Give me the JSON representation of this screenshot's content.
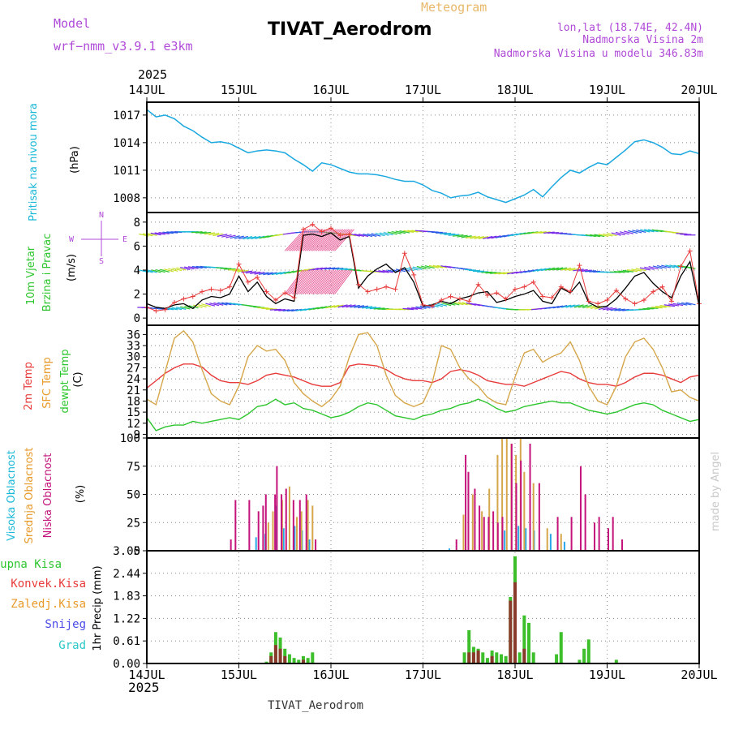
{
  "header": {
    "model_label": "Model",
    "model_name": "wrf−nmm_v3.9.1 e3km",
    "meteogram_label": "Meteogram",
    "title": "TIVAT_Aerodrom",
    "lonlat": "lon,lat (18.74E, 42.4N)",
    "altitude": "Nadmorska Visina 2m",
    "model_altitude": "Nadmorska Visina u modelu 346.83m",
    "year_top": "2025",
    "year_bottom": "2025",
    "footer": "TIVAT_Aerodrom",
    "watermark": "made by Angel"
  },
  "colors": {
    "pressure": "#1aa8e0",
    "temp2m": "#e83b3b",
    "sfc": "#d6a64a",
    "dewpt": "#2ec62e",
    "wind_speed": "#000000",
    "wind_gust": "#e83b3b",
    "high_cloud": "#2aa8e8",
    "mid_cloud": "#d6a64a",
    "low_cloud": "#c4137a",
    "total_precip": "#3cbf2a",
    "conv_precip": "#8a3a2a",
    "label_purple": "#b04ad8",
    "label_cyan": "#1ab8d8",
    "label_orange": "#e89a2a",
    "label_green": "#2ec62e",
    "label_red": "#e83b3b",
    "label_blue": "#4a4ae8",
    "label_teal": "#2ac8c8"
  },
  "chart_data": [
    {
      "type": "line",
      "panel": "pressure",
      "title": "Pritisak na nivou mora",
      "ylabel": "(hPa)",
      "ylim": [
        1006.4,
        1018.4
      ],
      "yticks": [
        1008,
        1011,
        1014,
        1017
      ],
      "x_days": [
        0,
        0.1,
        0.2,
        0.3,
        0.4,
        0.5,
        0.6,
        0.7,
        0.8,
        0.9,
        1.0,
        1.1,
        1.2,
        1.3,
        1.4,
        1.5,
        1.6,
        1.7,
        1.8,
        1.9,
        2.0,
        2.1,
        2.2,
        2.3,
        2.4,
        2.5,
        2.6,
        2.7,
        2.8,
        2.9,
        3.0,
        3.1,
        3.2,
        3.3,
        3.4,
        3.5,
        3.6,
        3.7,
        3.8,
        3.9,
        4.0,
        4.1,
        4.2,
        4.3,
        4.4,
        4.5,
        4.6,
        4.7,
        4.8,
        4.9,
        5.0,
        5.1,
        5.2,
        5.3,
        5.4,
        5.5,
        5.6,
        5.7,
        5.8,
        5.9,
        6.0
      ],
      "values": [
        1017.6,
        1016.8,
        1017.0,
        1016.6,
        1015.8,
        1015.3,
        1014.6,
        1014.0,
        1014.1,
        1013.9,
        1013.4,
        1012.9,
        1013.1,
        1013.2,
        1013.1,
        1012.9,
        1012.2,
        1011.6,
        1010.9,
        1011.8,
        1011.6,
        1011.2,
        1010.8,
        1010.6,
        1010.6,
        1010.5,
        1010.3,
        1010.0,
        1009.8,
        1009.8,
        1009.4,
        1008.8,
        1008.5,
        1008.0,
        1008.2,
        1008.3,
        1008.6,
        1008.1,
        1007.8,
        1007.5,
        1007.9,
        1008.3,
        1008.9,
        1008.1,
        1009.2,
        1010.2,
        1011.0,
        1010.7,
        1011.3,
        1011.8,
        1011.6,
        1012.4,
        1013.2,
        1014.1,
        1014.3,
        1014.0,
        1013.5,
        1012.8,
        1012.7,
        1013.1,
        1012.8
      ]
    },
    {
      "type": "line",
      "panel": "wind",
      "title": "10m Vjetar Brzina i Pravac",
      "ylabel": "(m/s)",
      "ylim": [
        -0.6,
        8.8
      ],
      "yticks": [
        0,
        2,
        4,
        6,
        8
      ],
      "compass": {
        "north": "N",
        "west": "W",
        "east": "E",
        "south": "S"
      },
      "x_days": [
        0,
        0.1,
        0.2,
        0.3,
        0.4,
        0.5,
        0.6,
        0.7,
        0.8,
        0.9,
        1.0,
        1.1,
        1.2,
        1.3,
        1.4,
        1.5,
        1.6,
        1.7,
        1.8,
        1.9,
        2.0,
        2.1,
        2.2,
        2.3,
        2.4,
        2.5,
        2.6,
        2.7,
        2.8,
        2.9,
        3.0,
        3.1,
        3.2,
        3.3,
        3.4,
        3.5,
        3.6,
        3.7,
        3.8,
        3.9,
        4.0,
        4.1,
        4.2,
        4.3,
        4.4,
        4.5,
        4.6,
        4.7,
        4.8,
        4.9,
        5.0,
        5.1,
        5.2,
        5.3,
        5.4,
        5.5,
        5.6,
        5.7,
        5.8,
        5.9,
        6.0
      ],
      "series": [
        {
          "name": "Brzina",
          "values": [
            1.2,
            0.9,
            0.8,
            1.1,
            1.2,
            0.8,
            1.5,
            1.8,
            1.7,
            2.0,
            3.5,
            2.2,
            3.0,
            1.8,
            1.2,
            1.6,
            1.4,
            6.9,
            7.0,
            6.8,
            7.1,
            6.5,
            6.8,
            2.5,
            3.5,
            4.1,
            4.5,
            3.8,
            4.2,
            3.0,
            1.0,
            1.1,
            1.4,
            1.2,
            1.6,
            1.8,
            2.1,
            2.2,
            1.3,
            1.5,
            1.8,
            2.0,
            2.3,
            1.4,
            1.2,
            2.5,
            2.1,
            3.0,
            1.3,
            0.9,
            1.0,
            1.6,
            2.5,
            3.5,
            3.8,
            2.9,
            2.2,
            1.7,
            3.5,
            4.7,
            1.0
          ]
        },
        {
          "name": "Udar",
          "values": [
            0.9,
            0.6,
            0.7,
            1.3,
            1.6,
            1.8,
            2.2,
            2.4,
            2.3,
            2.6,
            4.5,
            3.0,
            3.4,
            2.2,
            1.5,
            2.1,
            1.7,
            7.4,
            7.8,
            7.2,
            7.5,
            6.9,
            7.0,
            2.8,
            2.2,
            2.4,
            2.6,
            2.4,
            5.4,
            3.6,
            1.1,
            1.0,
            1.5,
            1.8,
            1.6,
            1.4,
            2.8,
            1.9,
            2.1,
            1.6,
            2.4,
            2.6,
            3.0,
            1.8,
            1.7,
            2.6,
            2.2,
            4.4,
            1.4,
            1.2,
            1.5,
            2.3,
            1.6,
            1.2,
            1.5,
            2.2,
            2.6,
            1.4,
            4.3,
            5.6,
            1.2
          ]
        }
      ]
    },
    {
      "type": "line",
      "panel": "temperature",
      "title": "2m Temp / SFC Temp / dewpt Temp",
      "ylabel": "(C)",
      "ylim": [
        8,
        38.5
      ],
      "yticks": [
        9,
        12,
        15,
        18,
        21,
        24,
        27,
        30,
        33,
        36
      ],
      "x_days": [
        0,
        0.1,
        0.2,
        0.3,
        0.4,
        0.5,
        0.6,
        0.7,
        0.8,
        0.9,
        1.0,
        1.1,
        1.2,
        1.3,
        1.4,
        1.5,
        1.6,
        1.7,
        1.8,
        1.9,
        2.0,
        2.1,
        2.2,
        2.3,
        2.4,
        2.5,
        2.6,
        2.7,
        2.8,
        2.9,
        3.0,
        3.1,
        3.2,
        3.3,
        3.4,
        3.5,
        3.6,
        3.7,
        3.8,
        3.9,
        4.0,
        4.1,
        4.2,
        4.3,
        4.4,
        4.5,
        4.6,
        4.7,
        4.8,
        4.9,
        5.0,
        5.1,
        5.2,
        5.3,
        5.4,
        5.5,
        5.6,
        5.7,
        5.8,
        5.9,
        6.0
      ],
      "series": [
        {
          "name": "2m Temp",
          "values": [
            21.5,
            23.5,
            25.5,
            27.0,
            28.0,
            28.0,
            27.2,
            25.0,
            23.5,
            23.0,
            23.0,
            22.5,
            23.5,
            25.0,
            25.5,
            25.0,
            24.5,
            23.5,
            22.5,
            22.0,
            22.0,
            23.0,
            27.5,
            28.0,
            27.8,
            27.5,
            26.5,
            25.0,
            24.0,
            23.5,
            23.5,
            23.0,
            24.0,
            26.0,
            26.5,
            26.0,
            25.0,
            23.5,
            23.0,
            22.5,
            22.5,
            22.0,
            23.0,
            24.0,
            25.0,
            26.0,
            25.5,
            24.0,
            23.0,
            22.5,
            22.5,
            22.0,
            23.0,
            24.5,
            25.5,
            25.5,
            25.0,
            24.0,
            23.0,
            24.5,
            25.0
          ]
        },
        {
          "name": "SFC Temp",
          "values": [
            18.5,
            17.0,
            26.0,
            35.0,
            37.0,
            34.0,
            26.5,
            20.0,
            18.0,
            17.0,
            22.0,
            30.0,
            33.0,
            31.5,
            32.0,
            29.0,
            23.0,
            20.0,
            18.0,
            16.5,
            18.5,
            22.0,
            30.0,
            36.0,
            36.5,
            33.0,
            25.0,
            19.5,
            17.5,
            16.5,
            17.5,
            23.0,
            33.0,
            32.0,
            27.0,
            24.0,
            22.0,
            19.0,
            17.5,
            17.0,
            24.5,
            31.0,
            32.0,
            28.5,
            30.0,
            31.0,
            34.0,
            29.0,
            22.0,
            18.0,
            17.0,
            22.0,
            30.0,
            34.0,
            35.0,
            32.0,
            27.0,
            20.5,
            21.0,
            19.0,
            18.0
          ]
        },
        {
          "name": "dewpt Temp",
          "values": [
            13.5,
            10.0,
            11.0,
            11.5,
            11.5,
            12.5,
            12.0,
            12.5,
            13.0,
            13.5,
            13.0,
            14.5,
            16.5,
            17.0,
            18.5,
            17.0,
            17.5,
            16.0,
            15.5,
            14.5,
            13.5,
            14.0,
            15.0,
            16.5,
            17.5,
            17.0,
            15.5,
            14.0,
            13.5,
            13.0,
            14.0,
            14.5,
            15.5,
            16.0,
            17.0,
            17.5,
            18.5,
            17.5,
            16.0,
            15.0,
            15.5,
            16.5,
            17.0,
            17.5,
            18.0,
            17.5,
            17.5,
            16.5,
            15.5,
            15.0,
            14.5,
            15.0,
            16.0,
            17.0,
            17.5,
            17.0,
            15.5,
            14.5,
            13.5,
            12.5,
            13.0
          ]
        }
      ]
    },
    {
      "type": "bar",
      "panel": "clouds",
      "title": "Visoka / Srednja / Niska Oblacnost",
      "ylabel": "(%)",
      "ylim": [
        0,
        100
      ],
      "yticks": [
        0,
        25,
        50,
        75,
        100
      ],
      "series": [
        {
          "name": "Visoka Oblacnost",
          "x": [
            1.2,
            1.3,
            1.42,
            1.5,
            1.62,
            1.7,
            1.78,
            3.3,
            3.9,
            4.05,
            4.13,
            4.22,
            4.4,
            4.55
          ],
          "values": [
            12,
            15,
            40,
            20,
            22,
            18,
            10,
            2,
            18,
            22,
            20,
            18,
            15,
            8
          ]
        },
        {
          "name": "Srednja Oblacnost",
          "x": [
            1.32,
            1.37,
            1.47,
            1.55,
            1.63,
            1.68,
            1.75,
            1.8,
            3.44,
            3.54,
            3.64,
            3.72,
            3.81,
            3.86,
            3.91,
            3.96,
            4.01,
            4.06,
            4.1,
            4.2,
            4.35,
            4.5
          ],
          "values": [
            25,
            35,
            45,
            57,
            30,
            35,
            45,
            40,
            32,
            50,
            35,
            55,
            85,
            100,
            100,
            95,
            85,
            100,
            70,
            60,
            20,
            15
          ]
        },
        {
          "name": "Niska Oblacnost",
          "x": [
            0.9,
            0.95,
            1.1,
            1.2,
            1.25,
            1.28,
            1.38,
            1.4,
            1.45,
            1.5,
            1.58,
            1.65,
            1.72,
            1.82,
            3.35,
            3.45,
            3.48,
            3.55,
            3.6,
            3.65,
            3.7,
            3.75,
            3.8,
            3.85,
            3.95,
            4.0,
            4.05,
            4.15,
            4.25,
            4.45,
            4.6,
            4.7,
            4.75,
            4.85,
            4.9,
            5.0,
            5.05,
            5.15
          ],
          "values": [
            10,
            45,
            45,
            35,
            40,
            50,
            50,
            75,
            50,
            55,
            45,
            45,
            50,
            10,
            10,
            85,
            70,
            55,
            40,
            30,
            30,
            35,
            25,
            30,
            95,
            60,
            80,
            95,
            60,
            30,
            30,
            75,
            50,
            25,
            30,
            20,
            30,
            10
          ]
        }
      ]
    },
    {
      "type": "bar",
      "panel": "precipitation",
      "title": "1hr Precip",
      "ylabel": "1hr Precip (mm)",
      "ylim": [
        0,
        3.05
      ],
      "yticks": [
        0,
        0.61,
        1.22,
        1.83,
        2.44,
        3.05
      ],
      "series": [
        {
          "name": "Ukupna Kisa",
          "x": [
            1.3,
            1.35,
            1.4,
            1.45,
            1.5,
            1.55,
            1.6,
            1.65,
            1.7,
            1.75,
            1.8,
            3.45,
            3.5,
            3.55,
            3.6,
            3.65,
            3.7,
            3.75,
            3.8,
            3.85,
            3.9,
            3.95,
            4.0,
            4.05,
            4.1,
            4.15,
            4.2,
            4.45,
            4.5,
            4.7,
            4.75,
            4.8,
            5.1
          ],
          "values": [
            0.05,
            0.3,
            0.85,
            0.7,
            0.4,
            0.25,
            0.15,
            0.1,
            0.2,
            0.15,
            0.3,
            0.3,
            0.9,
            0.45,
            0.4,
            0.3,
            0.15,
            0.35,
            0.3,
            0.25,
            0.2,
            1.8,
            2.9,
            0.3,
            1.3,
            1.1,
            0.3,
            0.25,
            0.85,
            0.1,
            0.4,
            0.65,
            0.1
          ]
        },
        {
          "name": "Konvek.Kisa",
          "x": [
            1.35,
            1.4,
            1.45,
            1.5,
            1.7,
            3.5,
            3.55,
            3.6,
            3.75,
            3.95,
            4.0,
            4.1
          ],
          "values": [
            0.2,
            0.5,
            0.4,
            0.2,
            0.1,
            0.3,
            0.3,
            0.35,
            0.2,
            1.7,
            2.2,
            0.4
          ]
        }
      ]
    }
  ],
  "axes": {
    "day_labels": [
      "14JUL",
      "15JUL",
      "16JUL",
      "17JUL",
      "18JUL",
      "19JUL",
      "20JUL"
    ]
  },
  "panel_labels": {
    "pressure": "Pritisak na nivou mora",
    "pressure_unit": "(hPa)",
    "wind_line1": "10m Vjetar",
    "wind_line2": "Brzina i Pravac",
    "wind_unit": "(m/s)",
    "temp_2m": "2m Temp",
    "temp_sfc": "SFC Temp",
    "temp_dewpt": "dewpt Temp",
    "temp_unit": "(C)",
    "cloud_high": "Visoka Oblacnost",
    "cloud_mid": "Srednja Oblacnost",
    "cloud_low": "Niska Oblacnost",
    "cloud_unit": "(%)",
    "precip_total": "Ukupna Kisa",
    "precip_conv": "Konvek.Kisa",
    "precip_frozen": "Zaledj.Kisa",
    "precip_snow": "Snijeg",
    "precip_hail": "Grad",
    "precip_unit": "1hr Precip (mm)"
  }
}
